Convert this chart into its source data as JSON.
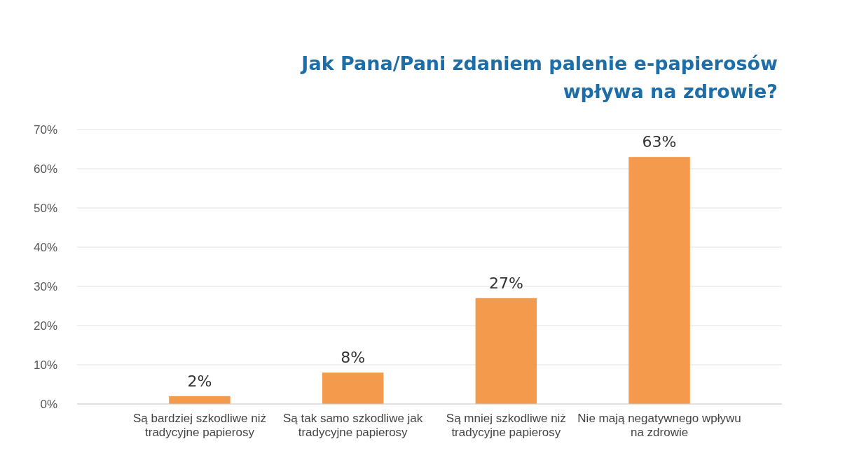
{
  "chart_data": {
    "type": "bar",
    "title": "Jak Pana/Pani zdaniem palenie e-papierosów wpływa na zdrowie?",
    "categories": [
      "Są bardziej szkodliwe niż tradycyjne papierosy",
      "Są tak samo szkodliwe jak tradycyjne papierosy",
      "Są mniej szkodliwe niż tradycyjne papierosy",
      "Nie mają negatywnego wpływu na zdrowie"
    ],
    "values": [
      2,
      8,
      27,
      63
    ],
    "value_labels": [
      "2%",
      "8%",
      "27%",
      "63%"
    ],
    "color": "#f39a4c",
    "ylim": [
      0,
      70
    ],
    "yticks": [
      {
        "value": 0,
        "label": "0%"
      },
      {
        "value": 10,
        "label": "10%"
      },
      {
        "value": 20,
        "label": "20%"
      },
      {
        "value": 30,
        "label": "30%"
      },
      {
        "value": 40,
        "label": "40%"
      },
      {
        "value": 50,
        "label": "50%"
      },
      {
        "value": 60,
        "label": "60%"
      },
      {
        "value": 70,
        "label": "70%"
      }
    ],
    "grid": "y"
  }
}
